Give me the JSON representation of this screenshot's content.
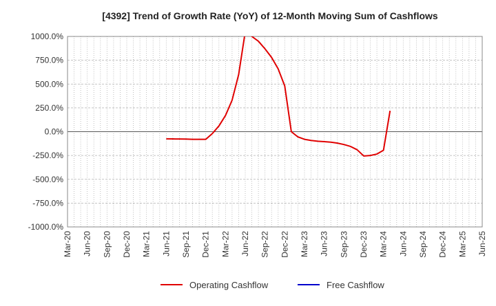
{
  "chart_data": {
    "type": "line",
    "title": "[4392]  Trend of Growth Rate (YoY) of 12-Month Moving Sum of Cashflows",
    "xlabel": "",
    "ylabel": "",
    "ylim": [
      -1000,
      1000
    ],
    "y_ticks": [
      1000,
      750,
      500,
      250,
      0,
      -250,
      -500,
      -750,
      -1000
    ],
    "y_tick_labels": [
      "1000.0%",
      "750.0%",
      "500.0%",
      "250.0%",
      "0.0%",
      "-250.0%",
      "-500.0%",
      "-750.0%",
      "-1000.0%"
    ],
    "categories": [
      "Mar-20",
      "Jun-20",
      "Sep-20",
      "Dec-20",
      "Mar-21",
      "Jun-21",
      "Sep-21",
      "Dec-21",
      "Mar-22",
      "Jun-22",
      "Sep-22",
      "Dec-22",
      "Mar-23",
      "Jun-23",
      "Sep-23",
      "Dec-23",
      "Mar-24",
      "Jun-24",
      "Sep-24",
      "Dec-24",
      "Mar-25",
      "Jun-25"
    ],
    "months": [
      "2020-03",
      "2020-04",
      "2020-05",
      "2020-06",
      "2020-07",
      "2020-08",
      "2020-09",
      "2020-10",
      "2020-11",
      "2020-12",
      "2021-01",
      "2021-02",
      "2021-03",
      "2021-04",
      "2021-05",
      "2021-06",
      "2021-07",
      "2021-08",
      "2021-09",
      "2021-10",
      "2021-11",
      "2021-12",
      "2022-01",
      "2022-02",
      "2022-03",
      "2022-04",
      "2022-05",
      "2022-06",
      "2022-07",
      "2022-08",
      "2022-09",
      "2022-10",
      "2022-11",
      "2022-12",
      "2023-01",
      "2023-02",
      "2023-03",
      "2023-04",
      "2023-05",
      "2023-06",
      "2023-07",
      "2023-08",
      "2023-09",
      "2023-10",
      "2023-11",
      "2023-12",
      "2024-01",
      "2024-02",
      "2024-03",
      "2024-04",
      "2024-05",
      "2024-06",
      "2024-07",
      "2024-08",
      "2024-09",
      "2024-10",
      "2024-11",
      "2024-12",
      "2025-01",
      "2025-02",
      "2025-03",
      "2025-04",
      "2025-05",
      "2025-06"
    ],
    "series": [
      {
        "name": "Operating Cashflow",
        "color": "#e00000",
        "points": [
          [
            "2021-06",
            -75
          ],
          [
            "2021-07",
            -76
          ],
          [
            "2021-08",
            -77
          ],
          [
            "2021-09",
            -78
          ],
          [
            "2021-10",
            -80
          ],
          [
            "2021-11",
            -80
          ],
          [
            "2021-12",
            -80
          ],
          [
            "2022-01",
            -20
          ],
          [
            "2022-02",
            60
          ],
          [
            "2022-03",
            170
          ],
          [
            "2022-04",
            330
          ],
          [
            "2022-05",
            600
          ],
          [
            "2022-06",
            1050
          ],
          [
            "2022-07",
            1000
          ],
          [
            "2022-08",
            950
          ],
          [
            "2022-09",
            870
          ],
          [
            "2022-10",
            780
          ],
          [
            "2022-11",
            660
          ],
          [
            "2022-12",
            480
          ],
          [
            "2023-01",
            0
          ],
          [
            "2023-02",
            -55
          ],
          [
            "2023-03",
            -80
          ],
          [
            "2023-04",
            -92
          ],
          [
            "2023-05",
            -100
          ],
          [
            "2023-06",
            -105
          ],
          [
            "2023-07",
            -110
          ],
          [
            "2023-08",
            -120
          ],
          [
            "2023-09",
            -135
          ],
          [
            "2023-10",
            -155
          ],
          [
            "2023-11",
            -190
          ],
          [
            "2023-12",
            -255
          ],
          [
            "2024-01",
            -250
          ],
          [
            "2024-02",
            -235
          ],
          [
            "2024-03",
            -195
          ],
          [
            "2024-04",
            220
          ]
        ]
      },
      {
        "name": "Free Cashflow",
        "color": "#0000cc",
        "points": []
      }
    ],
    "grid": true,
    "legend": "bottom-center"
  }
}
